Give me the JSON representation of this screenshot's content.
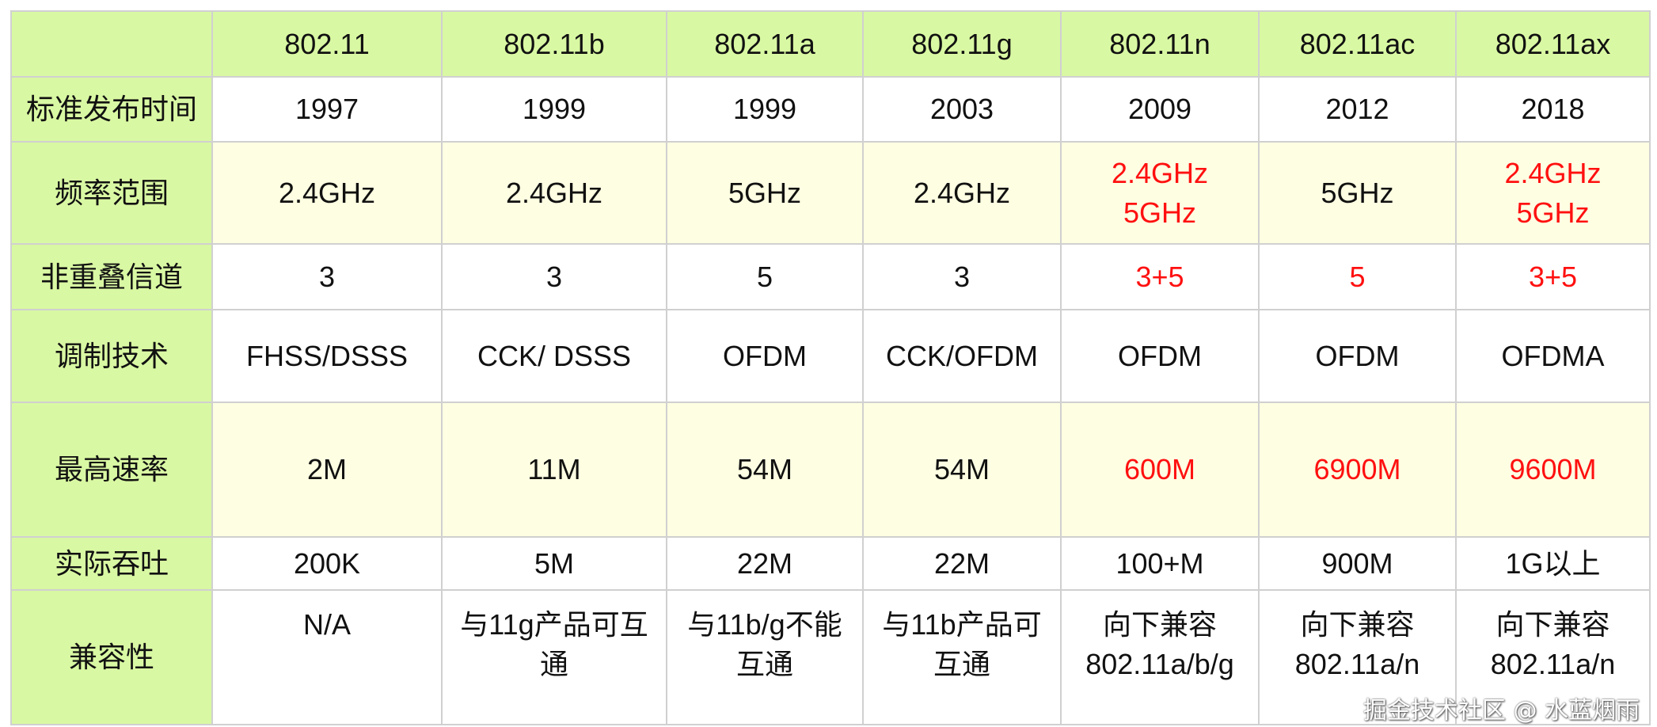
{
  "columns": [
    "",
    "802.11",
    "802.11b",
    "802.11a",
    "802.11g",
    "802.11n",
    "802.11ac",
    "802.11ax"
  ],
  "rows": [
    {
      "label": "标准发布时间",
      "cells": [
        [
          "1997"
        ],
        [
          "1999"
        ],
        [
          "1999"
        ],
        [
          "2003"
        ],
        [
          "2009"
        ],
        [
          "2012"
        ],
        [
          "2018"
        ]
      ],
      "red": [
        false,
        false,
        false,
        false,
        false,
        false,
        false
      ]
    },
    {
      "label": "频率范围",
      "cells": [
        [
          "2.4GHz"
        ],
        [
          "2.4GHz"
        ],
        [
          "5GHz"
        ],
        [
          "2.4GHz"
        ],
        [
          "2.4GHz",
          "5GHz"
        ],
        [
          "5GHz"
        ],
        [
          "2.4GHz",
          "5GHz"
        ]
      ],
      "red": [
        false,
        false,
        false,
        false,
        true,
        false,
        true
      ]
    },
    {
      "label": "非重叠信道",
      "cells": [
        [
          "3"
        ],
        [
          "3"
        ],
        [
          "5"
        ],
        [
          "3"
        ],
        [
          "3+5"
        ],
        [
          "5"
        ],
        [
          "3+5"
        ]
      ],
      "red": [
        false,
        false,
        false,
        false,
        true,
        true,
        true
      ]
    },
    {
      "label": "调制技术",
      "cells": [
        [
          "FHSS/DSSS"
        ],
        [
          "CCK/ DSSS"
        ],
        [
          "OFDM"
        ],
        [
          "CCK/OFDM"
        ],
        [
          "OFDM"
        ],
        [
          "OFDM"
        ],
        [
          "OFDMA"
        ]
      ],
      "red": [
        false,
        false,
        false,
        false,
        false,
        false,
        false
      ]
    },
    {
      "label": "最高速率",
      "cells": [
        [
          "2M"
        ],
        [
          "11M"
        ],
        [
          "54M"
        ],
        [
          "54M"
        ],
        [
          "600M"
        ],
        [
          "6900M"
        ],
        [
          "9600M"
        ]
      ],
      "red": [
        false,
        false,
        false,
        false,
        true,
        true,
        true
      ]
    },
    {
      "label": "实际吞吐",
      "cells": [
        [
          "200K"
        ],
        [
          "5M"
        ],
        [
          "22M"
        ],
        [
          "22M"
        ],
        [
          "100+M"
        ],
        [
          "900M"
        ],
        [
          "1G以上"
        ]
      ],
      "red": [
        false,
        false,
        false,
        false,
        false,
        false,
        false
      ]
    },
    {
      "label": "兼容性",
      "cells": [
        [
          "N/A"
        ],
        [
          "与11g产品可互",
          "通"
        ],
        [
          "与11b/g不能",
          "互通"
        ],
        [
          "与11b产品可",
          "互通"
        ],
        [
          "向下兼容",
          "802.11a/b/g"
        ],
        [
          "向下兼容",
          "802.11a/n"
        ],
        [
          "向下兼容",
          "802.11a/n"
        ]
      ],
      "red": [
        false,
        false,
        false,
        false,
        false,
        false,
        false
      ]
    }
  ],
  "watermark": "掘金技术社区 @ 水蓝烟雨",
  "colors": {
    "header_bg": "#d9f8a3",
    "highlight_row_bg": "#fefee2",
    "emphasis_text": "#ff1010",
    "border": "#d0d0d0"
  }
}
